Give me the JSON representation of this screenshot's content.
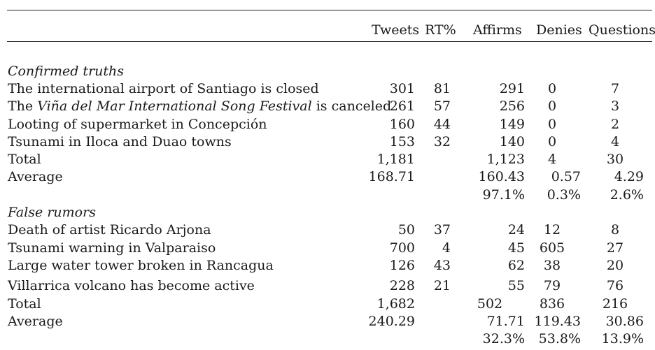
{
  "columns": [
    "Tweets",
    "RT%",
    "Affirms",
    "Denies",
    "Questions"
  ],
  "sections": [
    {
      "title": "Confirmed truths",
      "rows": [
        {
          "label_plain": "The international airport of Santiago is closed",
          "tweets": "301",
          "rt": "81",
          "affirms": "291",
          "denies": "0",
          "questions": "7"
        },
        {
          "label_pre": "The ",
          "label_em": "Viña del Mar International Song Festival",
          "label_post": " is canceled",
          "tweets": "261",
          "rt": "57",
          "affirms": "256",
          "denies": "0",
          "questions": "3"
        },
        {
          "label_plain": "Looting of supermarket in Concepción",
          "tweets": "160",
          "rt": "44",
          "affirms": "149",
          "denies": "0",
          "questions": "2"
        },
        {
          "label_plain": "Tsunami in Iloca and Duao towns",
          "tweets": "153",
          "rt": "32",
          "affirms": "140",
          "denies": "0",
          "questions": "4"
        }
      ],
      "total": {
        "label": "Total",
        "tweets": "1,181",
        "affirms": "1,123",
        "denies": "4",
        "questions": "30"
      },
      "average": {
        "label": "Average",
        "tweets": "168.71",
        "affirms": "160.43",
        "denies": "0.57",
        "questions": "4.29"
      },
      "percent": {
        "affirms": "97.1%",
        "denies": "0.3%",
        "questions": "2.6%"
      }
    },
    {
      "title": "False rumors",
      "rows": [
        {
          "label_plain": "Death of artist Ricardo Arjona",
          "tweets": "50",
          "rt": "37",
          "affirms": "24",
          "denies": "12",
          "questions": "8"
        },
        {
          "label_plain": "Tsunami warning in Valparaiso",
          "tweets": "700",
          "rt": "4",
          "affirms": "45",
          "denies": "605",
          "questions": "27"
        },
        {
          "label_plain": "Large water tower broken in Rancagua",
          "tweets": "126",
          "rt": "43",
          "affirms": "62",
          "denies": "38",
          "questions": "20"
        },
        {
          "label_plain": "Villarrica volcano has become active",
          "tweets": "228",
          "rt": "21",
          "affirms": "55",
          "denies": "79",
          "questions": "76"
        }
      ],
      "total": {
        "label": "Total",
        "tweets": "1,682",
        "affirms": "502",
        "denies": "836",
        "questions": "216"
      },
      "average": {
        "label": "Average",
        "tweets": "240.29",
        "affirms": "71.71",
        "denies": "119.43",
        "questions": "30.86"
      },
      "percent": {
        "affirms": "32.3%",
        "denies": "53.8%",
        "questions": "13.9%"
      }
    }
  ]
}
